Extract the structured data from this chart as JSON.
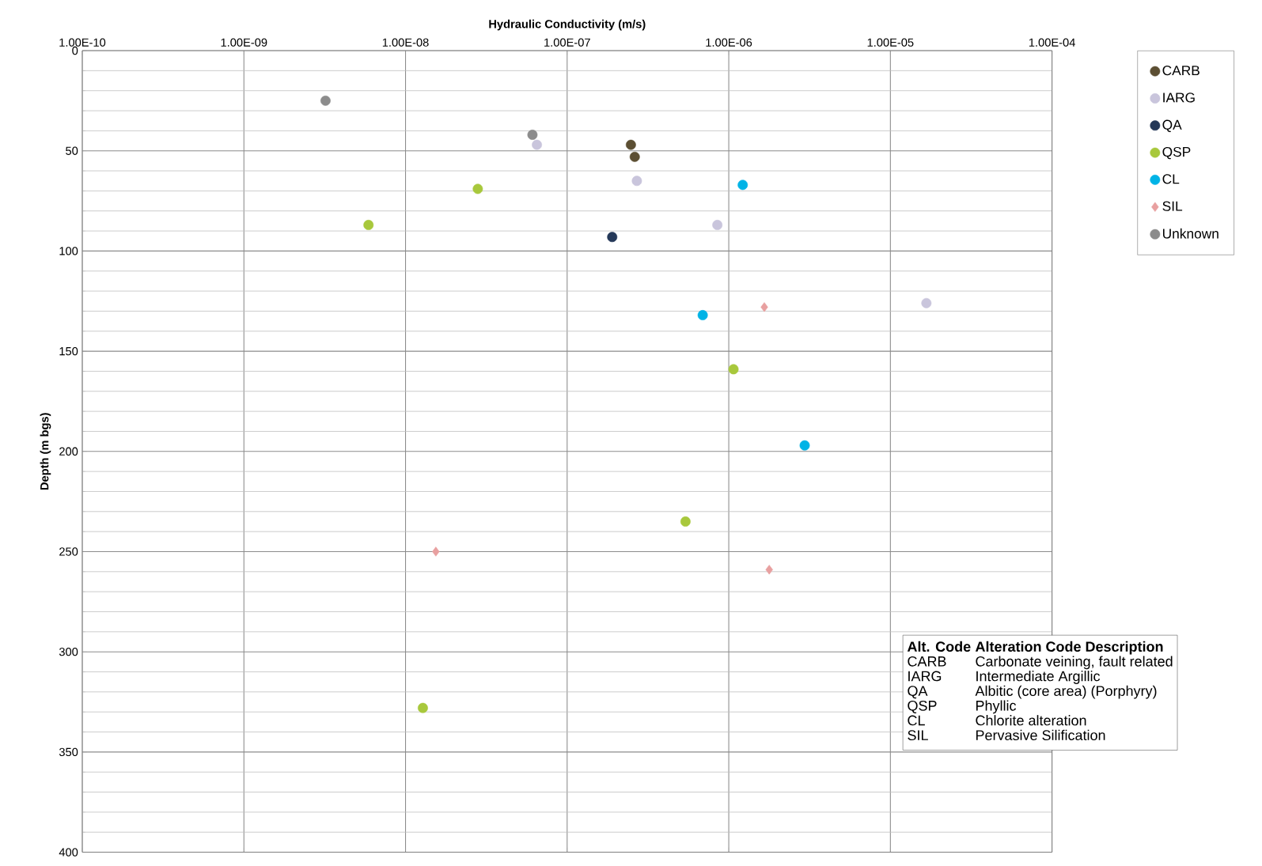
{
  "chart_data": {
    "type": "scatter",
    "xlabel": "Hydraulic Conductivity (m/s)",
    "ylabel": "Depth (m bgs)",
    "log": "x",
    "grid": true,
    "legend": "right",
    "marker": "circle",
    "xlim": [
      1e-10,
      0.0001
    ],
    "xticks": [
      {
        "value": 1e-10,
        "label": "1.00E-10"
      },
      {
        "value": 1e-09,
        "label": "1.00E-09"
      },
      {
        "value": 1e-08,
        "label": "1.00E-08"
      },
      {
        "value": 1e-07,
        "label": "1.00E-07"
      },
      {
        "value": 1e-06,
        "label": "1.00E-06"
      },
      {
        "value": 1e-05,
        "label": "1.00E-05"
      },
      {
        "value": 0.0001,
        "label": "1.00E-04"
      }
    ],
    "ylim": [
      400,
      0
    ],
    "yticks": [
      0,
      50,
      100,
      150,
      200,
      250,
      300,
      350,
      400
    ],
    "series": [
      {
        "name": "CARB",
        "color": "#5c4f33",
        "x": [
          2.48e-07,
          2.62e-07
        ],
        "values": [
          47,
          53
        ]
      },
      {
        "name": "IARG",
        "color": "#c9c5dc",
        "x": [
          6.5e-08,
          2.7e-07,
          8.5e-07,
          1.67e-05
        ],
        "values": [
          47,
          65,
          87,
          126
        ]
      },
      {
        "name": "QA",
        "color": "#243858",
        "x": [
          1.9e-07
        ],
        "values": [
          93
        ]
      },
      {
        "name": "QSP",
        "color": "#a8c83c",
        "x": [
          2.8e-08,
          5.9e-09,
          1.07e-06,
          5.4e-07,
          1.28e-08
        ],
        "values": [
          69,
          87,
          159,
          235,
          328
        ]
      },
      {
        "name": "CL",
        "color": "#00b3e6",
        "x": [
          1.22e-06,
          6.9e-07,
          2.95e-06
        ],
        "values": [
          67,
          132,
          197
        ]
      },
      {
        "name": "SIL",
        "color": "#e8a0a0",
        "marker": "diamond",
        "x": [
          1.66e-06,
          1.54e-08,
          1.78e-06
        ],
        "values": [
          128,
          250,
          259
        ]
      },
      {
        "name": "Unknown",
        "color": "#8c8c8c",
        "x": [
          3.2e-09,
          6.1e-08
        ],
        "values": [
          25,
          42
        ]
      }
    ],
    "annotations": [
      "Alt. Code",
      "Alteration Code Description",
      "CARB",
      "Carbonate veining, fault related",
      "IARG",
      "Intermediate Argillic",
      "QA",
      "Albitic (core area) (Porphyry)",
      "QSP",
      "Phyllic",
      "CL",
      "Chlorite alteration",
      "SIL",
      "Pervasive Silification"
    ]
  }
}
